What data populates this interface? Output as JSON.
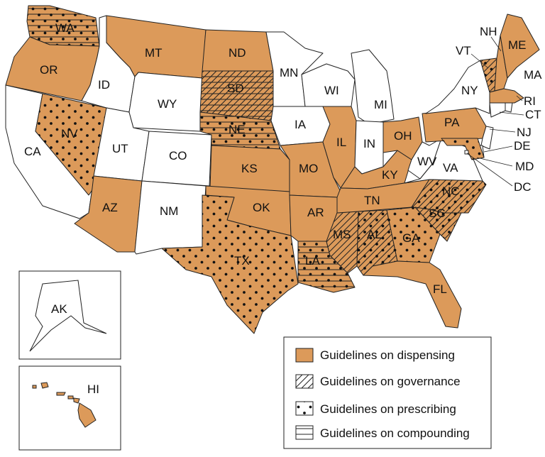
{
  "colors": {
    "fill": "#dc9a5a",
    "none": "#ffffff",
    "border": "#222222"
  },
  "legend": [
    {
      "key": "dispensing",
      "label": "Guidelines on dispensing"
    },
    {
      "key": "governance",
      "label": "Guidelines on governance"
    },
    {
      "key": "prescribing",
      "label": "Guidelines on prescribing"
    },
    {
      "key": "compounding",
      "label": "Guidelines on compounding"
    }
  ],
  "states": [
    {
      "abbr": "WA",
      "dispensing": true,
      "prescribing": true,
      "compounding": true
    },
    {
      "abbr": "OR",
      "dispensing": true
    },
    {
      "abbr": "CA"
    },
    {
      "abbr": "ID"
    },
    {
      "abbr": "NV",
      "dispensing": true,
      "prescribing": true
    },
    {
      "abbr": "UT"
    },
    {
      "abbr": "AZ",
      "dispensing": true
    },
    {
      "abbr": "MT",
      "dispensing": true
    },
    {
      "abbr": "WY"
    },
    {
      "abbr": "CO"
    },
    {
      "abbr": "NM"
    },
    {
      "abbr": "ND",
      "dispensing": true
    },
    {
      "abbr": "SD",
      "dispensing": true,
      "governance": true,
      "compounding": true
    },
    {
      "abbr": "NE",
      "dispensing": true,
      "prescribing": true,
      "compounding": true
    },
    {
      "abbr": "KS",
      "dispensing": true
    },
    {
      "abbr": "OK",
      "dispensing": true
    },
    {
      "abbr": "TX",
      "dispensing": true,
      "prescribing": true
    },
    {
      "abbr": "MN"
    },
    {
      "abbr": "IA"
    },
    {
      "abbr": "MO",
      "dispensing": true
    },
    {
      "abbr": "AR",
      "dispensing": true
    },
    {
      "abbr": "LA",
      "dispensing": true,
      "prescribing": true,
      "compounding": true
    },
    {
      "abbr": "WI"
    },
    {
      "abbr": "IL",
      "dispensing": true
    },
    {
      "abbr": "MS",
      "dispensing": true,
      "governance": true
    },
    {
      "abbr": "MI"
    },
    {
      "abbr": "IN"
    },
    {
      "abbr": "KY",
      "dispensing": true
    },
    {
      "abbr": "TN",
      "dispensing": true
    },
    {
      "abbr": "AL",
      "dispensing": true,
      "governance": true,
      "prescribing": true
    },
    {
      "abbr": "GA",
      "dispensing": true,
      "prescribing": true
    },
    {
      "abbr": "FL",
      "dispensing": true
    },
    {
      "abbr": "OH",
      "dispensing": true
    },
    {
      "abbr": "WV"
    },
    {
      "abbr": "VA"
    },
    {
      "abbr": "NC",
      "dispensing": true,
      "governance": true,
      "prescribing": true
    },
    {
      "abbr": "SC",
      "dispensing": true,
      "governance": true,
      "prescribing": true
    },
    {
      "abbr": "PA",
      "dispensing": true
    },
    {
      "abbr": "NY"
    },
    {
      "abbr": "VT",
      "dispensing": true,
      "governance": true,
      "prescribing": true
    },
    {
      "abbr": "NH",
      "dispensing": true
    },
    {
      "abbr": "ME",
      "dispensing": true
    },
    {
      "abbr": "MA",
      "dispensing": true
    },
    {
      "abbr": "RI"
    },
    {
      "abbr": "CT"
    },
    {
      "abbr": "NJ"
    },
    {
      "abbr": "DE"
    },
    {
      "abbr": "MD",
      "dispensing": true,
      "prescribing": true
    },
    {
      "abbr": "DC"
    },
    {
      "abbr": "AK"
    },
    {
      "abbr": "HI",
      "dispensing": true
    }
  ]
}
